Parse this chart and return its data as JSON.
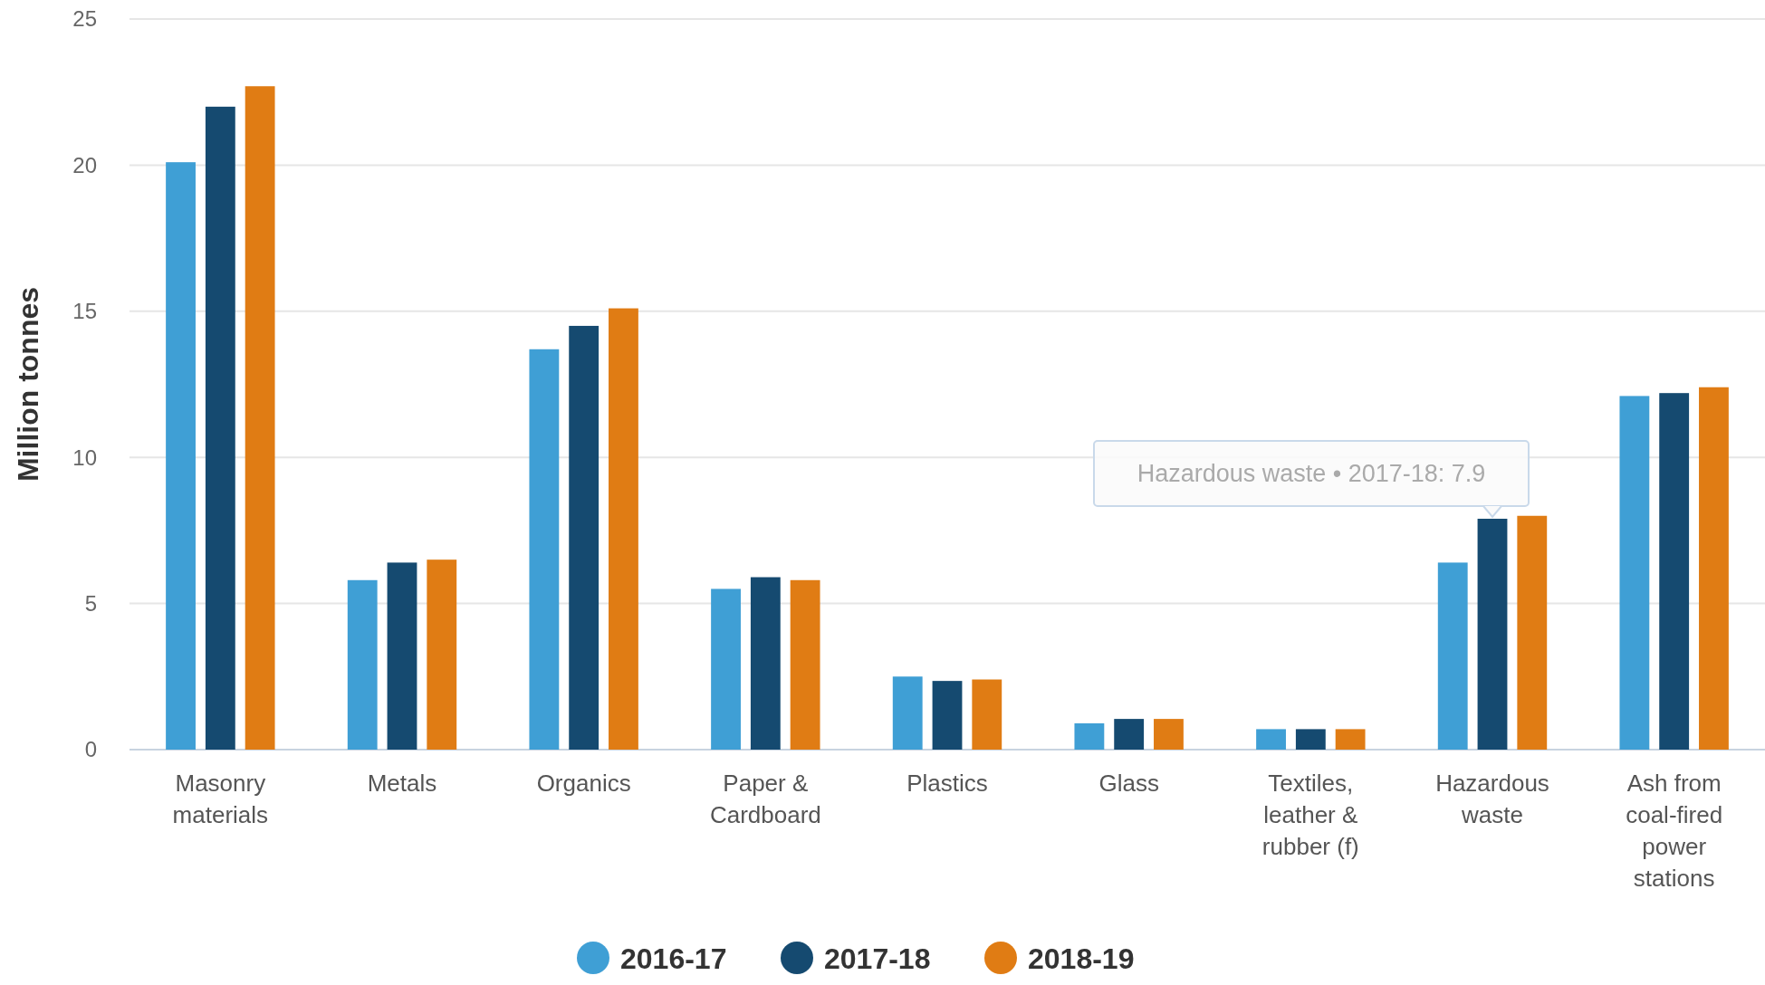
{
  "chart_data": {
    "type": "bar",
    "ylabel": "Million tonnes",
    "categories": [
      "Masonry materials",
      "Metals",
      "Organics",
      "Paper & Cardboard",
      "Plastics",
      "Glass",
      "Textiles, leather & rubber (f)",
      "Hazardous waste",
      "Ash from coal-fired power stations"
    ],
    "series": [
      {
        "name": "2016-17",
        "color": "#3f9fd5",
        "values": [
          20.1,
          5.8,
          13.7,
          5.5,
          2.5,
          0.9,
          0.7,
          6.4,
          12.1
        ]
      },
      {
        "name": "2017-18",
        "color": "#154a70",
        "values": [
          22.0,
          6.4,
          14.5,
          5.9,
          2.35,
          1.05,
          0.7,
          7.9,
          12.2
        ]
      },
      {
        "name": "2018-19",
        "color": "#e07c14",
        "values": [
          22.7,
          6.5,
          15.1,
          5.8,
          2.4,
          1.05,
          0.7,
          8.0,
          12.4
        ]
      }
    ],
    "ylim": [
      0,
      25
    ],
    "yticks": [
      0,
      5,
      10,
      15,
      20,
      25
    ],
    "grid": "y",
    "legend": "bottom",
    "annotations": [
      {
        "text": "Hazardous waste • 2017-18: 7.9",
        "x": "Hazardous waste",
        "y": 7.9
      }
    ]
  }
}
